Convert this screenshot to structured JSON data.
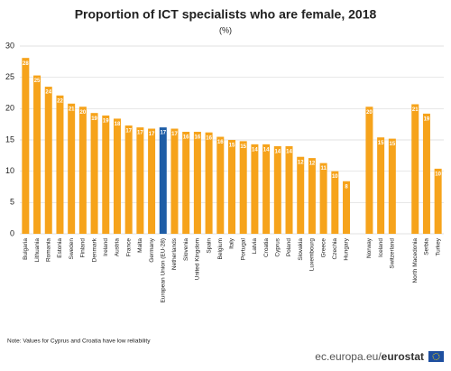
{
  "chart_data": {
    "type": "bar",
    "title": "Proportion of ICT specialists who are female, 2018",
    "subtitle": "(%)",
    "note": "Note: Values for Cyprus and Croatia have low reliability",
    "source": "ec.europa.eu/",
    "brand": "eurostat",
    "categories": [
      "Bulgaria",
      "Lithuania",
      "Romania",
      "Estonia",
      "Sweden",
      "Finland",
      "Denmark",
      "Ireland",
      "Austria",
      "France",
      "Malta",
      "Germany",
      "European Union (EU-28)",
      "Netherlands",
      "Slovenia",
      "United Kingdom",
      "Spain",
      "Belgium",
      "Italy",
      "Portugal",
      "Latvia",
      "Croatia",
      "Cyprus",
      "Poland",
      "Slovakia",
      "Luxembourg",
      "Greece",
      "Czechia",
      "Hungary",
      null,
      "Norway",
      "Iceland",
      "Switzerland",
      null,
      "North Macedonia",
      "Serbia",
      "Turkey"
    ],
    "values": [
      28.1,
      25.3,
      23.5,
      22.1,
      20.8,
      20.3,
      19.3,
      18.9,
      18.4,
      17.3,
      17.0,
      16.8,
      17.0,
      16.8,
      16.3,
      16.3,
      16.2,
      15.5,
      15.0,
      14.8,
      14.3,
      14.3,
      14.0,
      14.0,
      12.3,
      12.1,
      11.3,
      10.0,
      8.4,
      null,
      20.3,
      15.4,
      15.2,
      null,
      20.7,
      19.2,
      10.4
    ],
    "value_labels": [
      "28",
      "25",
      "24",
      "22",
      "21",
      "20",
      "19",
      "19",
      "18",
      "17",
      "17",
      "17",
      "17",
      "17",
      "16",
      "16",
      "16",
      "16",
      "15",
      "15",
      "14",
      "14",
      "14",
      "14",
      "12",
      "12",
      "11",
      "10",
      "8",
      null,
      "20",
      "15",
      "15",
      null,
      "21",
      "19",
      "10"
    ],
    "colors": [
      "#f6a31b",
      "#f6a31b",
      "#f6a31b",
      "#f6a31b",
      "#f6a31b",
      "#f6a31b",
      "#f6a31b",
      "#f6a31b",
      "#f6a31b",
      "#f6a31b",
      "#f6a31b",
      "#f6a31b",
      "#1e5da6",
      "#f6a31b",
      "#f6a31b",
      "#f6a31b",
      "#f6a31b",
      "#f6a31b",
      "#f6a31b",
      "#f6a31b",
      "#f6a31b",
      "#f6a31b",
      "#f6a31b",
      "#f6a31b",
      "#f6a31b",
      "#f6a31b",
      "#f6a31b",
      "#f6a31b",
      "#f6a31b",
      null,
      "#f6a31b",
      "#f6a31b",
      "#f6a31b",
      null,
      "#f6a31b",
      "#f6a31b",
      "#f6a31b"
    ],
    "ylim": [
      0,
      30
    ],
    "yticks": [
      0,
      5,
      10,
      15,
      20,
      25,
      30
    ],
    "grid": true
  }
}
